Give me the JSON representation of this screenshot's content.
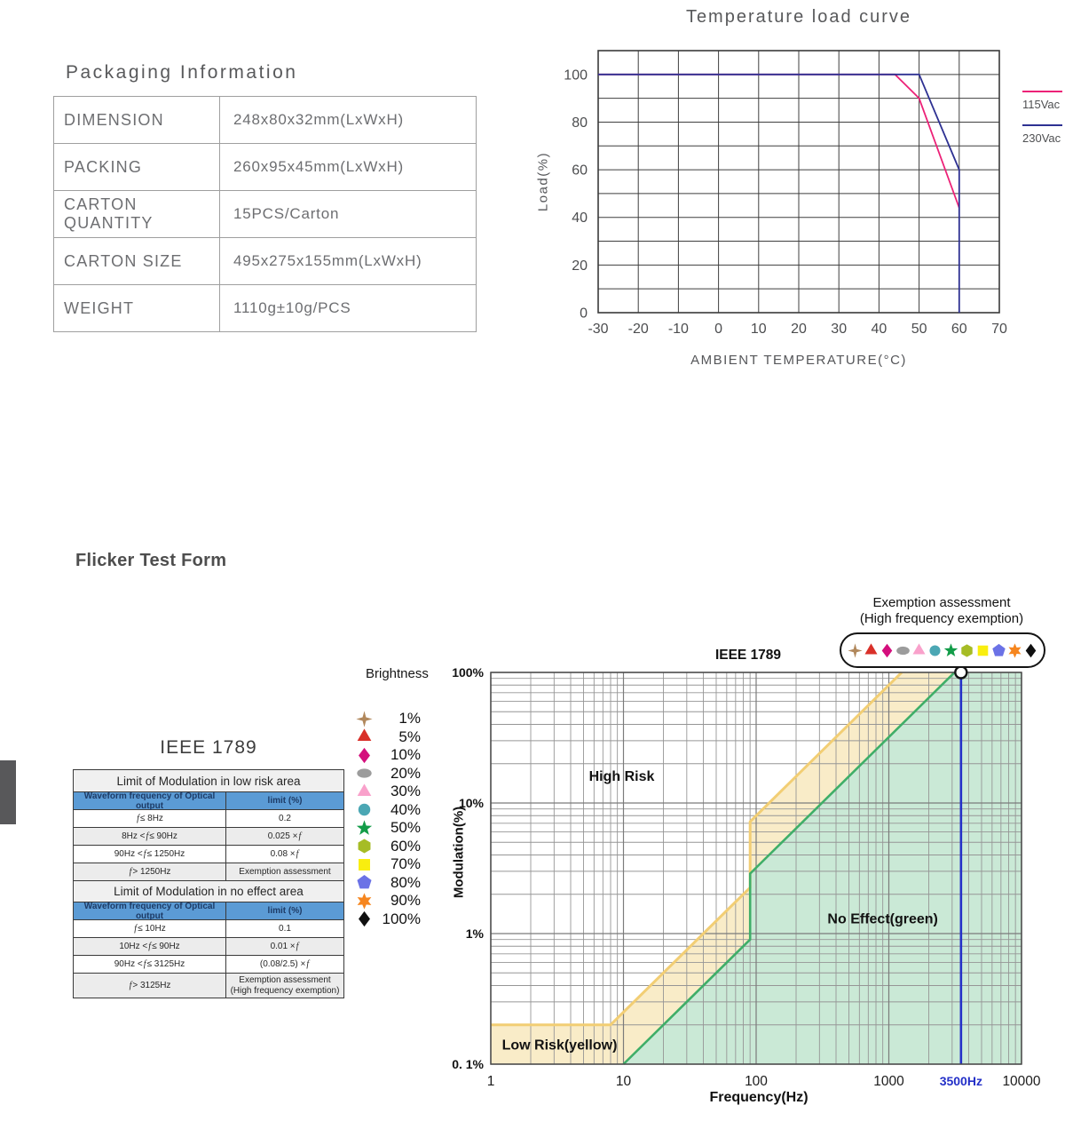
{
  "packaging": {
    "title": "Packaging Information",
    "rows": [
      {
        "label": "DIMENSION",
        "value": "248x80x32mm(LxWxH)"
      },
      {
        "label": "PACKING",
        "value": "260x95x45mm(LxWxH)"
      },
      {
        "label": "CARTON QUANTITY",
        "value": "15PCS/Carton"
      },
      {
        "label": "CARTON SIZE",
        "value": "495x275x155mm(LxWxH)"
      },
      {
        "label": "WEIGHT",
        "value": "1110g±10g/PCS"
      }
    ]
  },
  "headings": {
    "flicker_section": "Flicker Test Form"
  },
  "chart_data": [
    {
      "id": "temperature-load-curve",
      "type": "line",
      "title": "Temperature load curve",
      "xlabel": "AMBIENT TEMPERATURE(°C)",
      "ylabel": "Load(%)",
      "xlim": [
        -30,
        70
      ],
      "ylim": [
        0,
        110
      ],
      "grid": true,
      "grid_step": {
        "x": 10,
        "y": 10
      },
      "x_ticks": [
        -30,
        -20,
        -10,
        0,
        10,
        20,
        30,
        40,
        50,
        60,
        70
      ],
      "y_ticks": [
        0,
        20,
        40,
        60,
        80,
        100
      ],
      "legend_position": "right",
      "series": [
        {
          "name": "115Vac",
          "color": "#ec2177",
          "points": [
            [
              -30,
              100
            ],
            [
              44,
              100
            ],
            [
              50,
              90
            ],
            [
              60,
              44
            ]
          ]
        },
        {
          "name": "230Vac",
          "color": "#2e3192",
          "points": [
            [
              -30,
              100
            ],
            [
              50,
              100
            ],
            [
              60,
              60
            ],
            [
              60,
              0
            ]
          ]
        }
      ]
    },
    {
      "id": "ieee-1789-flicker",
      "type": "area",
      "title": "IEEE 1789",
      "xlabel": "Frequency(Hz)",
      "ylabel": "Modulation(%)",
      "x_scale": "log",
      "y_scale": "log",
      "xlim": [
        1,
        10000
      ],
      "ylim": [
        0.1,
        100
      ],
      "grid": true,
      "x_tick_labels": [
        "1",
        "10",
        "100",
        "1000",
        "10000"
      ],
      "y_tick_labels": [
        "100%",
        "10%",
        "1%",
        "0. 1%"
      ],
      "regions": [
        {
          "name": "low-risk-boundary",
          "color": "#f2ce74",
          "fill": "#f9ecc8",
          "points": [
            [
              1,
              0.2
            ],
            [
              8,
              0.2
            ],
            [
              90,
              2.25
            ],
            [
              90,
              7.2
            ],
            [
              1250,
              100
            ]
          ]
        },
        {
          "name": "no-effect-boundary",
          "color": "#3fae68",
          "fill": "#cae9d6",
          "points": [
            [
              10,
              0.1
            ],
            [
              90,
              0.9
            ],
            [
              90,
              2.88
            ],
            [
              3125,
              100
            ]
          ]
        }
      ],
      "labels": [
        {
          "text": "High Risk",
          "x": 9.7,
          "y": 16
        },
        {
          "text": "No Effect(green)",
          "x": 900,
          "y": 1.3
        },
        {
          "text": "Low Risk(yellow)",
          "x": 3.3,
          "y": 0.14
        }
      ],
      "marker_line": {
        "x": 3500,
        "label": "3500Hz",
        "color": "#2430c8"
      },
      "marker_point": {
        "x": 3500,
        "y": 100
      }
    }
  ],
  "ieee_table": {
    "title": "IEEE 1789",
    "sections": [
      {
        "header": "Limit of Modulation in low risk area",
        "col1": "Waveform frequency of Optical output",
        "col2": "limit (%)",
        "rows": [
          [
            "f ≤ 8Hz",
            "0.2"
          ],
          [
            "8Hz < f ≤ 90Hz",
            "0.025 × f"
          ],
          [
            "90Hz < f ≤ 1250Hz",
            "0.08 × f"
          ],
          [
            "f > 1250Hz",
            "Exemption assessment"
          ]
        ]
      },
      {
        "header": "Limit of Modulation in no effect area",
        "col1": "Waveform frequency of Optical output",
        "col2": "limit (%)",
        "rows": [
          [
            "f ≤ 10Hz",
            "0.1"
          ],
          [
            "10Hz < f ≤ 90Hz",
            "0.01 × f"
          ],
          [
            "90Hz < f ≤ 3125Hz",
            "(0.08/2.5) × f"
          ],
          [
            "f > 3125Hz",
            "Exemption assessment\n(High frequency exemption)"
          ]
        ]
      }
    ]
  },
  "brightness_legend": {
    "title": "Brightness",
    "items": [
      {
        "label": "1%",
        "shape": "star4",
        "color": "#b1885c"
      },
      {
        "label": "5%",
        "shape": "triangle",
        "color": "#d93029"
      },
      {
        "label": "10%",
        "shape": "diamond",
        "color": "#d40f7d"
      },
      {
        "label": "20%",
        "shape": "ellipse",
        "color": "#9c9c9c"
      },
      {
        "label": "30%",
        "shape": "triangle",
        "color": "#f9a1cb"
      },
      {
        "label": "40%",
        "shape": "circle",
        "color": "#4ba7b4"
      },
      {
        "label": "50%",
        "shape": "star5",
        "color": "#129c48"
      },
      {
        "label": "60%",
        "shape": "hexagon",
        "color": "#a6bc25"
      },
      {
        "label": "70%",
        "shape": "square",
        "color": "#f9ee0f"
      },
      {
        "label": "80%",
        "shape": "pentagon",
        "color": "#6b72e6"
      },
      {
        "label": "90%",
        "shape": "star6",
        "color": "#f6861f"
      },
      {
        "label": "100%",
        "shape": "diamond",
        "color": "#101010"
      }
    ]
  },
  "exemption": {
    "line1": "Exemption assessment",
    "line2": "(High frequency exemption)"
  },
  "palette": {
    "table_header_blue": "#5b9bd5",
    "table_header_text": "#1d3b66",
    "gray_tab": "#58585a",
    "grid_dark": "#3f3f3f",
    "grid_light": "#8d8d8d"
  }
}
